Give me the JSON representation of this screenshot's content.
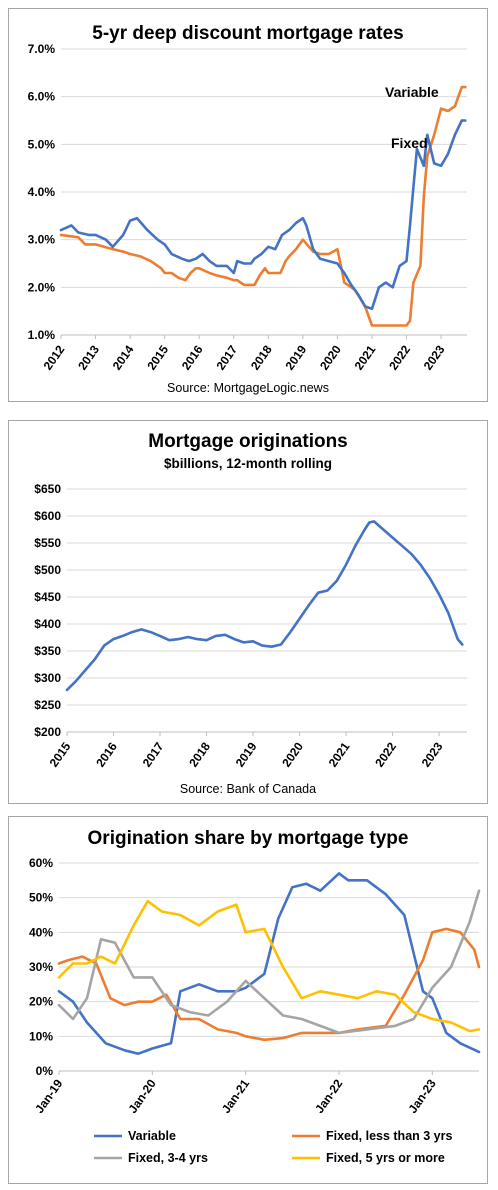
{
  "chart_data": [
    {
      "type": "line",
      "title": "5-yr deep discount mortgage rates",
      "source": "Source: MortgageLogic.news",
      "ylim": [
        1.0,
        7.0
      ],
      "yticks": [
        1.0,
        2.0,
        3.0,
        4.0,
        5.0,
        6.0,
        7.0
      ],
      "ytick_labels": [
        "1.0%",
        "2.0%",
        "3.0%",
        "4.0%",
        "5.0%",
        "6.0%",
        "7.0%"
      ],
      "xlim": [
        2012,
        2023.75
      ],
      "xtick_labels": [
        "2012",
        "2013",
        "2014",
        "2015",
        "2016",
        "2017",
        "2018",
        "2019",
        "2020",
        "2021",
        "2022",
        "2023"
      ],
      "grid": true,
      "legend": "inline labels near series ends",
      "series": [
        {
          "name": "Variable",
          "color": "#ed7d31",
          "x": [
            2012.0,
            2012.5,
            2012.7,
            2013.0,
            2013.5,
            2013.8,
            2014.0,
            2014.3,
            2014.6,
            2014.9,
            2015.0,
            2015.2,
            2015.4,
            2015.6,
            2015.75,
            2015.9,
            2016.0,
            2016.3,
            2016.5,
            2016.8,
            2017.0,
            2017.1,
            2017.3,
            2017.6,
            2017.75,
            2017.9,
            2018.0,
            2018.2,
            2018.35,
            2018.5,
            2018.6,
            2018.8,
            2019.0,
            2019.3,
            2019.5,
            2019.75,
            2020.0,
            2020.1,
            2020.2,
            2020.5,
            2020.8,
            2021.0,
            2021.3,
            2021.6,
            2021.9,
            2022.0,
            2022.1,
            2022.2,
            2022.4,
            2022.5,
            2022.6,
            2022.8,
            2023.0,
            2023.2,
            2023.4,
            2023.6,
            2023.7
          ],
          "y": [
            3.1,
            3.05,
            2.9,
            2.9,
            2.8,
            2.75,
            2.7,
            2.65,
            2.55,
            2.4,
            2.3,
            2.3,
            2.2,
            2.15,
            2.3,
            2.4,
            2.4,
            2.3,
            2.25,
            2.2,
            2.15,
            2.15,
            2.05,
            2.05,
            2.25,
            2.4,
            2.3,
            2.3,
            2.3,
            2.55,
            2.65,
            2.8,
            3.0,
            2.75,
            2.7,
            2.7,
            2.8,
            2.45,
            2.1,
            1.95,
            1.6,
            1.2,
            1.2,
            1.2,
            1.2,
            1.2,
            1.3,
            2.1,
            2.45,
            3.9,
            4.75,
            5.2,
            5.75,
            5.7,
            5.8,
            6.2,
            6.2
          ]
        },
        {
          "name": "Fixed",
          "color": "#4472c4",
          "x": [
            2012.0,
            2012.3,
            2012.5,
            2012.8,
            2013.0,
            2013.3,
            2013.5,
            2013.8,
            2014.0,
            2014.2,
            2014.5,
            2014.8,
            2015.0,
            2015.2,
            2015.5,
            2015.7,
            2015.9,
            2016.1,
            2016.3,
            2016.5,
            2016.8,
            2017.0,
            2017.1,
            2017.3,
            2017.5,
            2017.6,
            2017.8,
            2018.0,
            2018.2,
            2018.4,
            2018.6,
            2018.8,
            2019.0,
            2019.1,
            2019.3,
            2019.5,
            2019.75,
            2020.0,
            2020.2,
            2020.4,
            2020.6,
            2020.8,
            2021.0,
            2021.2,
            2021.4,
            2021.6,
            2021.8,
            2022.0,
            2022.1,
            2022.2,
            2022.3,
            2022.5,
            2022.6,
            2022.8,
            2023.0,
            2023.2,
            2023.4,
            2023.6,
            2023.7
          ],
          "y": [
            3.2,
            3.3,
            3.15,
            3.1,
            3.1,
            3.0,
            2.85,
            3.1,
            3.4,
            3.45,
            3.2,
            3.0,
            2.9,
            2.7,
            2.6,
            2.55,
            2.6,
            2.7,
            2.55,
            2.45,
            2.45,
            2.3,
            2.55,
            2.5,
            2.5,
            2.6,
            2.7,
            2.85,
            2.8,
            3.1,
            3.2,
            3.35,
            3.45,
            3.3,
            2.8,
            2.6,
            2.55,
            2.5,
            2.3,
            2.05,
            1.85,
            1.6,
            1.55,
            2.0,
            2.1,
            2.0,
            2.45,
            2.55,
            3.3,
            4.1,
            4.9,
            4.55,
            5.2,
            4.6,
            4.55,
            4.8,
            5.2,
            5.5,
            5.5
          ]
        }
      ]
    },
    {
      "type": "line",
      "title": "Mortgage originations",
      "subtitle": "$billions, 12-month rolling",
      "source": "Source: Bank of Canada",
      "ylim": [
        200,
        650
      ],
      "yticks": [
        200,
        250,
        300,
        350,
        400,
        450,
        500,
        550,
        600,
        650
      ],
      "ytick_labels": [
        "$200",
        "$250",
        "$300",
        "$350",
        "$400",
        "$450",
        "$500",
        "$550",
        "$600",
        "$650"
      ],
      "xlim": [
        2015,
        2023.6
      ],
      "xtick_labels": [
        "2015",
        "2016",
        "2017",
        "2018",
        "2019",
        "2020",
        "2021",
        "2022",
        "2023"
      ],
      "grid": true,
      "series": [
        {
          "name": "",
          "color": "#4472c4",
          "x": [
            2015.0,
            2015.2,
            2015.4,
            2015.6,
            2015.8,
            2016.0,
            2016.2,
            2016.4,
            2016.6,
            2016.8,
            2017.0,
            2017.2,
            2017.4,
            2017.6,
            2017.8,
            2018.0,
            2018.2,
            2018.4,
            2018.6,
            2018.8,
            2019.0,
            2019.2,
            2019.4,
            2019.6,
            2019.8,
            2020.0,
            2020.2,
            2020.4,
            2020.6,
            2020.8,
            2021.0,
            2021.2,
            2021.4,
            2021.5,
            2021.6,
            2021.8,
            2022.0,
            2022.2,
            2022.4,
            2022.6,
            2022.8,
            2023.0,
            2023.2,
            2023.4,
            2023.5
          ],
          "y": [
            278,
            295,
            315,
            335,
            360,
            372,
            378,
            385,
            390,
            385,
            378,
            370,
            372,
            376,
            372,
            370,
            378,
            380,
            372,
            366,
            368,
            360,
            358,
            362,
            385,
            410,
            435,
            458,
            462,
            480,
            510,
            545,
            575,
            588,
            590,
            575,
            560,
            545,
            530,
            510,
            485,
            455,
            420,
            372,
            362
          ]
        }
      ]
    },
    {
      "type": "line",
      "title": "Origination share by mortgage type",
      "ylim": [
        0,
        60
      ],
      "yticks": [
        0,
        10,
        20,
        30,
        40,
        50,
        60
      ],
      "ytick_labels": [
        "0%",
        "10%",
        "20%",
        "30%",
        "40%",
        "50%",
        "60%"
      ],
      "xlim": [
        2019.0,
        2023.5
      ],
      "xtick_labels": [
        "Jan-19",
        "Jan-20",
        "Jan-21",
        "Jan-22",
        "Jan-23"
      ],
      "grid": true,
      "legend": "bottom",
      "series": [
        {
          "name": "Variable",
          "color": "#4472c4",
          "x": [
            2019.0,
            2019.15,
            2019.3,
            2019.5,
            2019.7,
            2019.85,
            2020.0,
            2020.2,
            2020.3,
            2020.5,
            2020.7,
            2020.9,
            2021.0,
            2021.2,
            2021.35,
            2021.5,
            2021.65,
            2021.8,
            2022.0,
            2022.1,
            2022.3,
            2022.5,
            2022.7,
            2022.9,
            2023.0,
            2023.15,
            2023.3,
            2023.5
          ],
          "y": [
            23,
            20,
            14,
            8,
            6,
            5,
            6.5,
            8,
            23,
            25,
            23,
            23,
            24,
            28,
            44,
            53,
            54,
            52,
            57,
            55,
            55,
            51,
            45,
            23,
            21,
            11,
            8,
            5.5
          ]
        },
        {
          "name": "Fixed, less than 3 yrs",
          "color": "#ed7d31",
          "x": [
            2019.0,
            2019.1,
            2019.25,
            2019.4,
            2019.55,
            2019.7,
            2019.85,
            2020.0,
            2020.15,
            2020.3,
            2020.5,
            2020.7,
            2020.9,
            2021.0,
            2021.2,
            2021.4,
            2021.6,
            2021.8,
            2022.0,
            2022.2,
            2022.5,
            2022.7,
            2022.9,
            2023.0,
            2023.15,
            2023.3,
            2023.45,
            2023.5
          ],
          "y": [
            31,
            32,
            33,
            31,
            21,
            19,
            20,
            20,
            22,
            15,
            15,
            12,
            11,
            10,
            9,
            9.5,
            11,
            11,
            11,
            12,
            13,
            22,
            32,
            40,
            41,
            40,
            35,
            30
          ]
        },
        {
          "name": "Fixed, 3-4 yrs",
          "color": "#a5a5a5",
          "x": [
            2019.0,
            2019.15,
            2019.3,
            2019.45,
            2019.6,
            2019.8,
            2020.0,
            2020.2,
            2020.4,
            2020.6,
            2020.8,
            2021.0,
            2021.2,
            2021.4,
            2021.6,
            2021.8,
            2022.0,
            2022.3,
            2022.6,
            2022.8,
            2023.0,
            2023.2,
            2023.4,
            2023.5
          ],
          "y": [
            19,
            15,
            21,
            38,
            37,
            27,
            27,
            19,
            17,
            16,
            20,
            26,
            21,
            16,
            15,
            13,
            11,
            12,
            13,
            15,
            24,
            30,
            43,
            52
          ]
        },
        {
          "name": "Fixed, 5 yrs or more",
          "color": "#ffc000",
          "x": [
            2019.0,
            2019.15,
            2019.3,
            2019.45,
            2019.6,
            2019.8,
            2019.95,
            2020.1,
            2020.3,
            2020.5,
            2020.7,
            2020.9,
            2021.0,
            2021.2,
            2021.4,
            2021.6,
            2021.8,
            2022.0,
            2022.2,
            2022.4,
            2022.6,
            2022.8,
            2023.0,
            2023.2,
            2023.4,
            2023.5
          ],
          "y": [
            27,
            31,
            31,
            33,
            31,
            42,
            49,
            46,
            45,
            42,
            46,
            48,
            40,
            41,
            30,
            21,
            23,
            22,
            21,
            23,
            22,
            17,
            15,
            14,
            11.5,
            12
          ]
        }
      ]
    }
  ]
}
